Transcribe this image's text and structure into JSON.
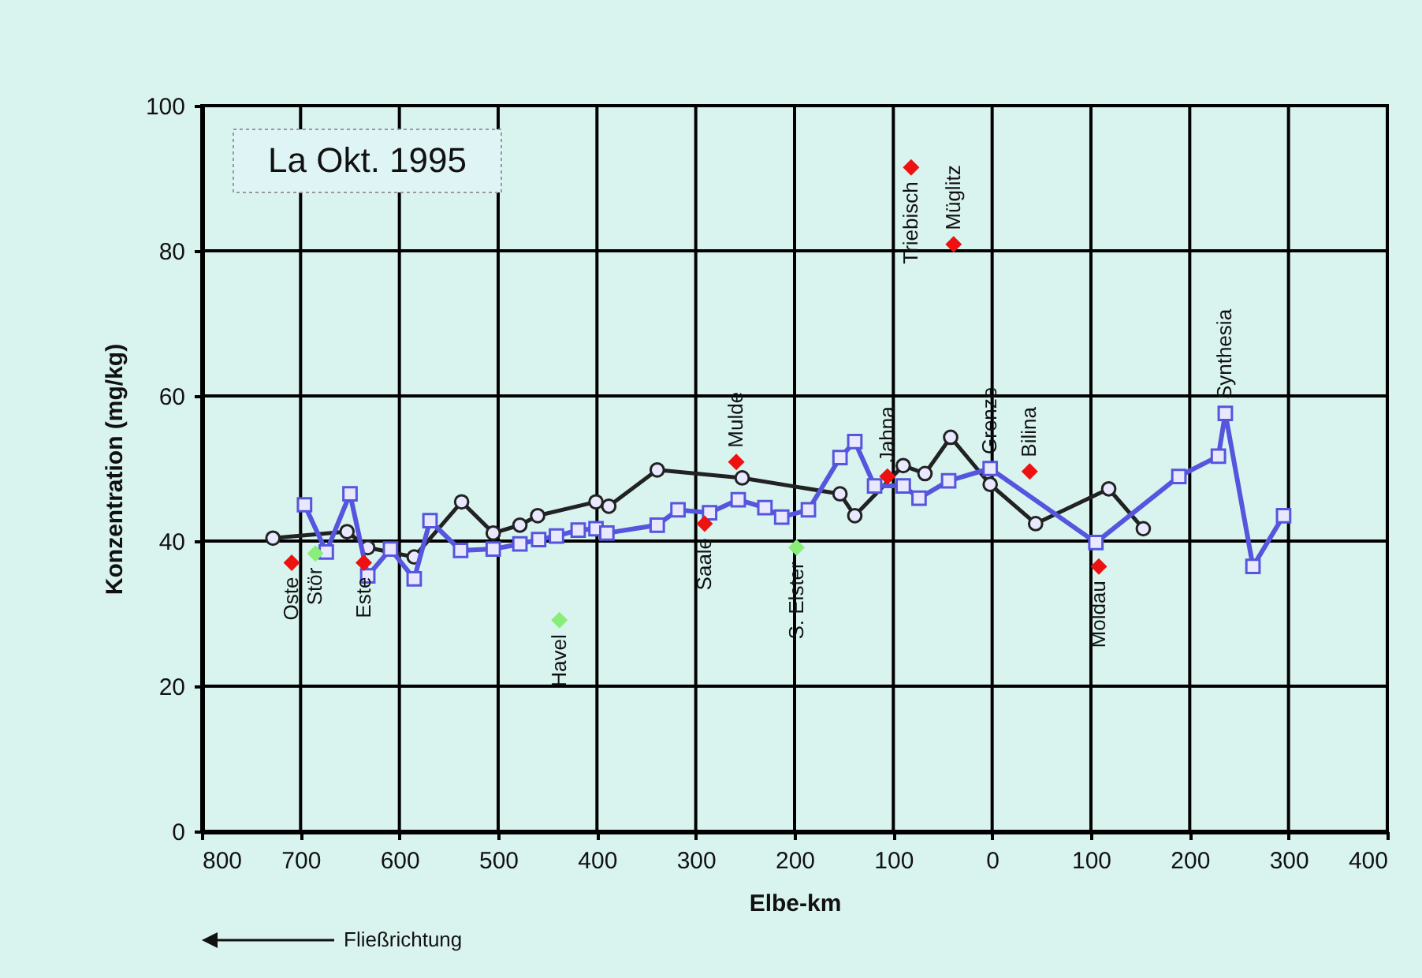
{
  "chart_data": {
    "type": "line",
    "title": "La  Okt. 1995",
    "xlabel": "Elbe-km",
    "ylabel": "Konzentration  (mg/kg)",
    "xlim": [
      -800,
      400
    ],
    "xticks": [
      {
        "value": -800,
        "label": "800"
      },
      {
        "value": -700,
        "label": "700"
      },
      {
        "value": -600,
        "label": "600"
      },
      {
        "value": -500,
        "label": "500"
      },
      {
        "value": -400,
        "label": "400"
      },
      {
        "value": -300,
        "label": "300"
      },
      {
        "value": -200,
        "label": "200"
      },
      {
        "value": -100,
        "label": "100"
      },
      0,
      100,
      200,
      300,
      400
    ],
    "ylim": [
      0,
      100
    ],
    "yticks": [
      0,
      20,
      40,
      60,
      80,
      100
    ],
    "grid": true,
    "series": [
      {
        "marker": "circle",
        "color": "#222222",
        "x": [
          -728,
          -653,
          -632,
          -585,
          -537,
          -505,
          -478,
          -460,
          -401,
          -388,
          -339,
          -253,
          -154,
          -139,
          -90,
          -68,
          -42,
          -2,
          44,
          118,
          153
        ],
        "values": [
          40.4,
          41.3,
          39.1,
          37.8,
          45.4,
          41.1,
          42.2,
          43.5,
          45.4,
          44.8,
          49.8,
          48.7,
          46.5,
          43.5,
          50.4,
          49.3,
          54.3,
          47.8,
          42.4,
          47.2,
          41.7
        ]
      },
      {
        "marker": "square",
        "color": "#5555dd",
        "x": [
          -696,
          -674,
          -650,
          -632,
          -609,
          -585,
          -569,
          -538,
          -505,
          -478,
          -459,
          -441,
          -419,
          -401,
          -390,
          -339,
          -318,
          -286,
          -257,
          -230,
          -213,
          -186,
          -154,
          -139,
          -119,
          -90,
          -74,
          -44,
          -2,
          105,
          189,
          229,
          236,
          264,
          295
        ],
        "values": [
          45.0,
          38.5,
          46.5,
          35.2,
          38.9,
          34.8,
          42.8,
          38.7,
          38.9,
          39.6,
          40.2,
          40.7,
          41.5,
          41.7,
          41.1,
          42.2,
          44.3,
          43.9,
          45.7,
          44.6,
          43.3,
          44.3,
          51.5,
          53.7,
          47.6,
          47.6,
          45.9,
          48.3,
          50.0,
          39.8,
          48.9,
          51.7,
          57.6,
          36.5,
          43.5
        ]
      },
      {
        "type": "scatter",
        "marker": "diamond",
        "color": "#ee1111",
        "x": [
          -709,
          -636,
          -291,
          -259,
          -106,
          -82,
          -39,
          38,
          108
        ],
        "values": [
          37.0,
          37.0,
          42.4,
          50.9,
          48.9,
          91.5,
          80.9,
          49.6,
          36.5
        ]
      },
      {
        "type": "scatter",
        "marker": "diamond",
        "color": "#88ee77",
        "x": [
          -685,
          -438,
          -198
        ],
        "values": [
          38.3,
          29.1,
          39.1
        ]
      }
    ],
    "annotations": [
      {
        "text": "Oste",
        "x": -709,
        "y": 37.0
      },
      {
        "text": "Stör",
        "x": -685,
        "y": 38.3
      },
      {
        "text": "Este",
        "x": -636,
        "y": 37.0
      },
      {
        "text": "Havel",
        "x": -438,
        "y": 29.1
      },
      {
        "text": "Saale",
        "x": -291,
        "y": 42.4
      },
      {
        "text": "Mulde",
        "x": -259,
        "y": 50.9
      },
      {
        "text": "S. Elster",
        "x": -198,
        "y": 39.1
      },
      {
        "text": "Jahna",
        "x": -106,
        "y": 48.9
      },
      {
        "text": "Triebisch",
        "x": -82,
        "y": 91.5
      },
      {
        "text": "Müglitz",
        "x": -39,
        "y": 80.9
      },
      {
        "text": "Grenze",
        "x": -2,
        "y": 50.0
      },
      {
        "text": "Bilina",
        "x": 38,
        "y": 49.6
      },
      {
        "text": "Moldau",
        "x": 108,
        "y": 36.5
      },
      {
        "text": "Synthesia",
        "x": 236,
        "y": 57.6
      },
      "Fließrichtung"
    ]
  }
}
